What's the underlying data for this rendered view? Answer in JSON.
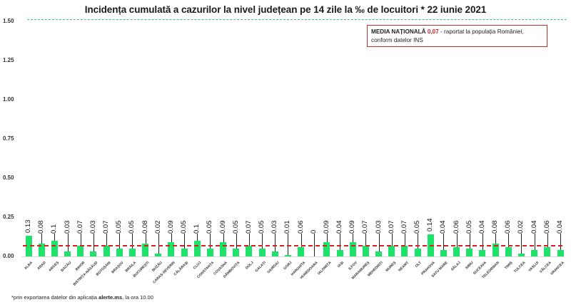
{
  "title": "Incidența cumulată a cazurilor la nivel județean pe 14 zile la ‰ de locuitori *  22 iunie 2021",
  "legend": {
    "label_bold": "MEDIA NAȚIONALĂ",
    "value": "0,07",
    "text_1": " - raportat la populația României,",
    "text_2": "conform datelor INS"
  },
  "footnote": {
    "prefix": "*prin exportarea datelor din aplicația ",
    "bold": "alerte.ms",
    "suffix": ", la ora 10.00"
  },
  "colors": {
    "bar": "#1ee36b",
    "average_line": "#d42020",
    "reference_line": "#3fbf8a",
    "legend_border": "#c9302c"
  },
  "chart_data": {
    "type": "bar",
    "title": "Incidența cumulată a cazurilor la nivel județean pe 14 zile la ‰ de locuitori * 22 iunie 2021",
    "xlabel": "",
    "ylabel": "",
    "ylim": [
      0,
      1.5
    ],
    "yticks": [
      "0.00",
      "0.25",
      "0.50",
      "0.75",
      "1.00",
      "1.25",
      "1.50"
    ],
    "grid": false,
    "national_average": 0.07,
    "reference_line": 1.5,
    "categories": [
      "ALBA",
      "ARAD",
      "ARGEȘ",
      "BACĂU",
      "BIHOR",
      "BISTRIȚA-NĂSĂUD",
      "BOTOȘANI",
      "BRAȘOV",
      "BRĂILA",
      "BUCUREȘTI",
      "BUZĂU",
      "CARAȘ-SEVERIN",
      "CĂLĂRAȘI",
      "CLUJ",
      "CONSTANȚA",
      "COVASNA",
      "DÂMBOVIȚA",
      "DOLJ",
      "GALAȚI",
      "GIURGIU",
      "GORJ",
      "HARGHITA",
      "HUNEDOARA",
      "IALOMIȚA",
      "IAȘI",
      "ILFOV",
      "MARAMUREȘ",
      "MEHEDINȚI",
      "MUREȘ",
      "NEAMȚ",
      "OLT",
      "PRAHOVA",
      "SATU MARE",
      "SĂLAJ",
      "SIBIU",
      "SUCEAVA",
      "TELEORMAN",
      "TIMIȘ",
      "TULCEA",
      "VASLUI",
      "VÂLCEA",
      "VRANCEA"
    ],
    "values": [
      0.13,
      0.08,
      0.1,
      0.03,
      0.07,
      0.03,
      0.07,
      0.05,
      0.05,
      0.08,
      0.02,
      0.09,
      0.05,
      0.1,
      0.05,
      0.09,
      0.05,
      0.07,
      0.05,
      0.03,
      0.01,
      0.06,
      0,
      0.09,
      0.04,
      0.09,
      0.07,
      0.03,
      0.07,
      0.07,
      0.05,
      0.14,
      0.04,
      0.06,
      0.05,
      0.04,
      0.08,
      0.06,
      0.02,
      0.04,
      0.06,
      0.04
    ],
    "value_labels": [
      "0.13",
      "0.08",
      "0.1",
      "0.03",
      "0.07",
      "0.03",
      "0.07",
      "0.05",
      "0.05",
      "0.08",
      "0.02",
      "0.09",
      "0.05",
      "0.1",
      "0.05",
      "0.09",
      "0.05",
      "0.07",
      "0.05",
      "0.03",
      "0.01",
      "0.06",
      "0",
      "0.09",
      "0.04",
      "0.09",
      "0.07",
      "0.03",
      "0.07",
      "0.07",
      "0.05",
      "0.14",
      "0.04",
      "0.06",
      "0.05",
      "0.04",
      "0.08",
      "0.06",
      "0.02",
      "0.04",
      "0.06",
      "0.04"
    ],
    "legend_position": "top-right"
  }
}
